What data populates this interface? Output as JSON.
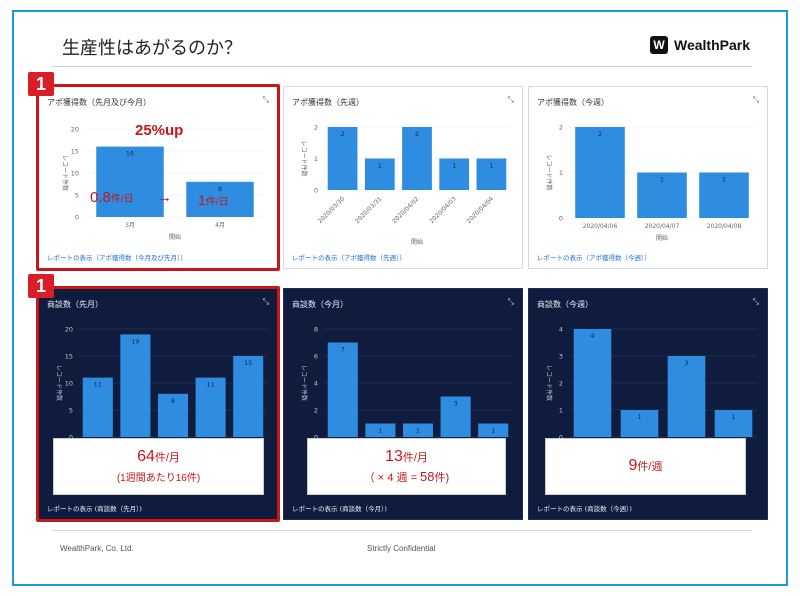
{
  "slide": {
    "title": "生産性はあがるのか？",
    "brand": "WealthPark",
    "brand_mark": "W",
    "footer_left": "WealthPark, Co. Ltd.",
    "footer_center": "Strictly Confidential",
    "badge": "1"
  },
  "colors": {
    "bar": "#2e8de0",
    "frame": "#1a9bd7",
    "highlight": "#c8161d",
    "dark_bg": "#0f1c3d"
  },
  "panels": {
    "p1": {
      "title": "アポ獲得数（先月及び今月）",
      "link": "レポートの表示（アポ獲得数（今月及び先月））",
      "expand": "⤡"
    },
    "p2": {
      "title": "アポ獲得数（先週）",
      "link": "レポートの表示（アポ獲得数（先週））",
      "expand": "⤡"
    },
    "p3": {
      "title": "アポ獲得数（今週）",
      "link": "レポートの表示（アポ獲得数（今週））",
      "expand": "⤡"
    },
    "p4": {
      "title": "商談数（先月）",
      "link": "レポートの表示 (商談数（先月）)",
      "expand": "⤡"
    },
    "p5": {
      "title": "商談数（今月）",
      "link": "レポートの表示 (商談数（今月）)",
      "expand": "⤡"
    },
    "p6": {
      "title": "商談数（今週）",
      "link": "レポートの表示 (商談数（今週）)",
      "expand": "⤡"
    }
  },
  "annotations": {
    "growth": "25%up",
    "rate_before_num": "0.8",
    "rate_before_unit": "件/日",
    "arrow": "→",
    "rate_after_num": "1",
    "rate_after_unit": "件/日",
    "m_last_num": "64",
    "m_last_unit": "件/月",
    "m_last_sub": "(1週間あたり16件)",
    "m_this_num": "13",
    "m_this_unit": "件/月",
    "m_this_sub_pre": "（ × 4 週 = ",
    "m_this_sub_num": "58",
    "m_this_sub_unit": "件)",
    "w_this_num": "9",
    "w_this_unit": "件/週"
  },
  "chart_data": [
    {
      "id": "c1",
      "type": "bar",
      "ylabel": "レコード件数",
      "xlabel": "開始",
      "categories": [
        "3月",
        "4月"
      ],
      "values": [
        16,
        8
      ],
      "ylim": [
        0,
        20
      ],
      "yticks": [
        0,
        5,
        10,
        15,
        20
      ],
      "dark": false
    },
    {
      "id": "c2",
      "type": "bar",
      "ylabel": "レコード件数",
      "xlabel": "開始",
      "categories": [
        "2020/03/30",
        "2020/03/31",
        "2020/04/02",
        "2020/04/03",
        "2020/04/04"
      ],
      "values": [
        2,
        1,
        2,
        1,
        1
      ],
      "ylim": [
        0,
        2
      ],
      "yticks": [
        0,
        1,
        2
      ],
      "dark": false
    },
    {
      "id": "c3",
      "type": "bar",
      "ylabel": "レコード件数",
      "xlabel": "開始",
      "categories": [
        "2020/04/06",
        "2020/04/07",
        "2020/04/08"
      ],
      "values": [
        2,
        1,
        1
      ],
      "ylim": [
        0,
        2
      ],
      "yticks": [
        0,
        1,
        2
      ],
      "dark": false
    },
    {
      "id": "c4",
      "type": "bar",
      "ylabel": "レコード件数",
      "xlabel": "",
      "categories": [
        "",
        "",
        "",
        "",
        ""
      ],
      "values": [
        11,
        19,
        8,
        11,
        15
      ],
      "ylim": [
        0,
        20
      ],
      "yticks": [
        0,
        5,
        10,
        15,
        20
      ],
      "dark": true
    },
    {
      "id": "c5",
      "type": "bar",
      "ylabel": "レコード件数",
      "xlabel": "",
      "categories": [
        "",
        "",
        "",
        "",
        ""
      ],
      "values": [
        7,
        1,
        1,
        3,
        1
      ],
      "ylim": [
        0,
        8
      ],
      "yticks": [
        0,
        2,
        4,
        6,
        8
      ],
      "dark": true
    },
    {
      "id": "c6",
      "type": "bar",
      "ylabel": "レコード件数",
      "xlabel": "",
      "categories": [
        "",
        "",
        "",
        ""
      ],
      "values": [
        4,
        1,
        3,
        1
      ],
      "ylim": [
        0,
        4
      ],
      "yticks": [
        0,
        1,
        2,
        3,
        4
      ],
      "dark": true
    }
  ]
}
